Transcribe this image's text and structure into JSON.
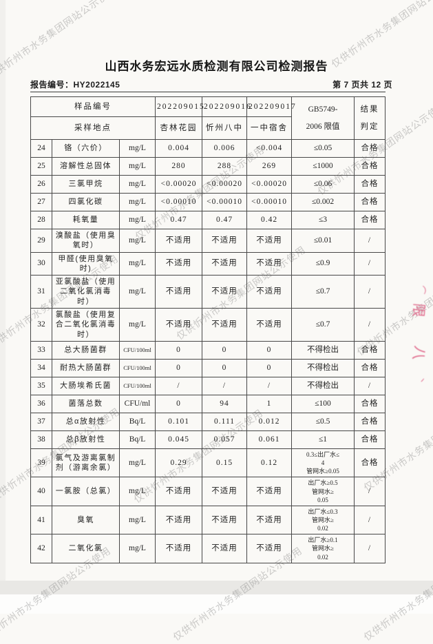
{
  "page": {
    "title": "山西水务宏远水质检测有限公司检测报告",
    "report_no": "报告编号：HY2022145",
    "page_indicator": "第 7 页共 12 页"
  },
  "watermark": {
    "text": "仅供忻州市水务集团网站公示使用"
  },
  "stamp": {
    "color": "#e06a8c",
    "glyphs": [
      "⌒",
      "限",
      "八",
      "丶"
    ]
  },
  "table": {
    "header": {
      "row1_label": "样品编号",
      "row2_label": "采样地点",
      "sample_ids": [
        "202209015",
        "202209016",
        "202209017"
      ],
      "locations": [
        "杏林花园",
        "忻州八中",
        "一中宿舍"
      ],
      "limit_header_line1": "GB5749-",
      "limit_header_line2": "2006 限值",
      "result_header_line1": "结果",
      "result_header_line2": "判定"
    },
    "rows": [
      {
        "no": "24",
        "name": "铬（六价）",
        "unit": "mg/L",
        "v1": "0.004",
        "v2": "0.006",
        "v3": "<0.004",
        "limit": "≤0.05",
        "result": "合格"
      },
      {
        "no": "25",
        "name": "溶解性总固体",
        "unit": "mg/L",
        "v1": "280",
        "v2": "288",
        "v3": "269",
        "limit": "≤1000",
        "result": "合格"
      },
      {
        "no": "26",
        "name": "三氯甲烷",
        "unit": "mg/L",
        "v1": "<0.00020",
        "v2": "<0.00020",
        "v3": "<0.00020",
        "limit": "≤0.06",
        "result": "合格"
      },
      {
        "no": "27",
        "name": "四氯化碳",
        "unit": "mg/L",
        "v1": "<0.00010",
        "v2": "<0.00010",
        "v3": "<0.00010",
        "limit": "≤0.002",
        "result": "合格"
      },
      {
        "no": "28",
        "name": "耗氧量",
        "unit": "mg/L",
        "v1": "0.47",
        "v2": "0.47",
        "v3": "0.42",
        "limit": "≤3",
        "result": "合格"
      },
      {
        "no": "29",
        "name": "溴酸盐（使用臭氧时）",
        "unit": "mg/L",
        "v1": "不适用",
        "v2": "不适用",
        "v3": "不适用",
        "limit": "≤0.01",
        "result": "/"
      },
      {
        "no": "30",
        "name": "甲醛(使用臭氧时)",
        "unit": "mg/L",
        "v1": "不适用",
        "v2": "不适用",
        "v3": "不适用",
        "limit": "≤0.9",
        "result": "/"
      },
      {
        "no": "31",
        "name": "亚氯酸盐（使用二氧化氯消毒时）",
        "unit": "mg/L",
        "v1": "不适用",
        "v2": "不适用",
        "v3": "不适用",
        "limit": "≤0.7",
        "result": "/"
      },
      {
        "no": "32",
        "name": "氯酸盐（使用复合二氧化氯消毒时）",
        "unit": "mg/L",
        "v1": "不适用",
        "v2": "不适用",
        "v3": "不适用",
        "limit": "≤0.7",
        "result": "/"
      },
      {
        "no": "33",
        "name": "总大肠菌群",
        "unit": "CFU/100ml",
        "v1": "0",
        "v2": "0",
        "v3": "0",
        "limit": "不得检出",
        "result": "合格"
      },
      {
        "no": "34",
        "name": "耐热大肠菌群",
        "unit": "CFU/100ml",
        "v1": "0",
        "v2": "0",
        "v3": "0",
        "limit": "不得检出",
        "result": "合格"
      },
      {
        "no": "35",
        "name": "大肠埃希氏菌",
        "unit": "CFU/100ml",
        "v1": "/",
        "v2": "/",
        "v3": "/",
        "limit": "不得检出",
        "result": "/"
      },
      {
        "no": "36",
        "name": "菌落总数",
        "unit": "CFU/ml",
        "v1": "0",
        "v2": "94",
        "v3": "1",
        "limit": "≤100",
        "result": "合格"
      },
      {
        "no": "37",
        "name": "总α放射性",
        "unit": "Bq/L",
        "v1": "0.101",
        "v2": "0.111",
        "v3": "0.012",
        "limit": "≤0.5",
        "result": "合格"
      },
      {
        "no": "38",
        "name": "总β放射性",
        "unit": "Bq/L",
        "v1": "0.045",
        "v2": "0.057",
        "v3": "0.061",
        "limit": "≤1",
        "result": "合格"
      },
      {
        "no": "39",
        "name": "氯气及游离氯制剂（游离余氯）",
        "unit": "mg/L",
        "v1": "0.29",
        "v2": "0.15",
        "v3": "0.12",
        "limit": "0.3≤出厂水≤\n4\n管网水≥0.05",
        "result": "合格"
      },
      {
        "no": "40",
        "name": "一氯胺（总氯）",
        "unit": "mg/L",
        "v1": "不适用",
        "v2": "不适用",
        "v3": "不适用",
        "limit": "出厂水≥0.5\n管网水≥\n0.05",
        "result": "/"
      },
      {
        "no": "41",
        "name": "臭氧",
        "unit": "mg/L",
        "v1": "不适用",
        "v2": "不适用",
        "v3": "不适用",
        "limit": "出厂水≤0.3\n管网水≥\n0.02",
        "result": "/"
      },
      {
        "no": "42",
        "name": "二氧化氯",
        "unit": "mg/L",
        "v1": "不适用",
        "v2": "不适用",
        "v3": "不适用",
        "limit": "出厂水≥0.1\n管网水≥\n0.02",
        "result": "/"
      }
    ]
  }
}
